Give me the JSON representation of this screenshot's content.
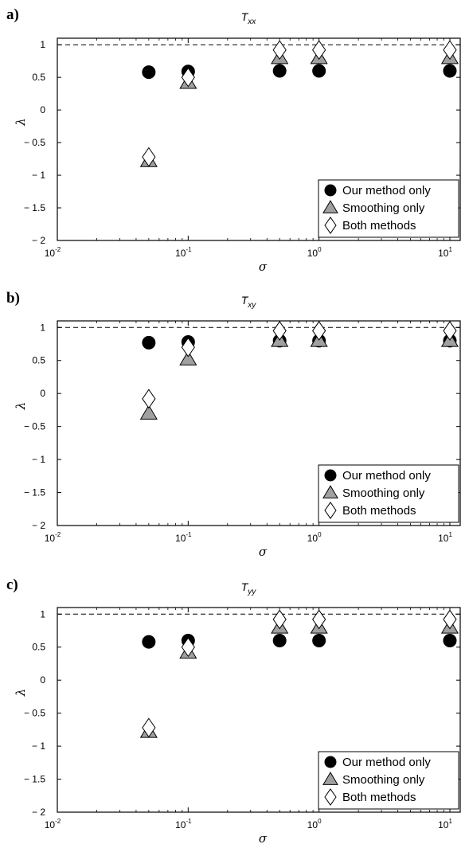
{
  "chart_data": [
    {
      "panel_label": "a)",
      "type": "scatter",
      "title": {
        "main": "T",
        "sub": "xx"
      },
      "xlabel": "σ",
      "ylabel": "λ",
      "xscale": "log",
      "xlim": [
        0.01,
        12
      ],
      "ylim": [
        -2,
        1.1
      ],
      "xticks": [
        {
          "base": "10",
          "exp": "-2",
          "value": 0.01
        },
        {
          "base": "10",
          "exp": "-1",
          "value": 0.1
        },
        {
          "base": "10",
          "exp": "0",
          "value": 1
        },
        {
          "base": "10",
          "exp": "1",
          "value": 10
        }
      ],
      "yticks": [
        {
          "label": "1",
          "value": 1
        },
        {
          "label": "0.5",
          "value": 0.5
        },
        {
          "label": "0",
          "value": 0
        },
        {
          "label": "− 0.5",
          "value": -0.5
        },
        {
          "label": "− 1",
          "value": -1
        },
        {
          "label": "− 1.5",
          "value": -1.5
        },
        {
          "label": "− 2",
          "value": -2
        }
      ],
      "reference_line": {
        "y": 1,
        "style": "dashed"
      },
      "grid": false,
      "legend_position": "bottom-right",
      "series": [
        {
          "name": "Our method only",
          "marker": "circle",
          "color": "#000000",
          "x": [
            0.05,
            0.1,
            0.5,
            1,
            10
          ],
          "y": [
            0.58,
            0.59,
            0.6,
            0.6,
            0.6
          ]
        },
        {
          "name": "Smoothing only",
          "marker": "triangle",
          "color": "#a0a0a0",
          "x": [
            0.05,
            0.1,
            0.5,
            1,
            10
          ],
          "y": [
            -0.78,
            0.42,
            0.8,
            0.8,
            0.8
          ]
        },
        {
          "name": "Both methods",
          "marker": "diamond",
          "color": "#ffffff",
          "x": [
            0.05,
            0.1,
            0.5,
            1,
            10
          ],
          "y": [
            -0.72,
            0.5,
            0.92,
            0.92,
            0.92
          ]
        }
      ]
    },
    {
      "panel_label": "b)",
      "type": "scatter",
      "title": {
        "main": "T",
        "sub": "xy"
      },
      "xlabel": "σ",
      "ylabel": "λ",
      "xscale": "log",
      "xlim": [
        0.01,
        12
      ],
      "ylim": [
        -2,
        1.1
      ],
      "xticks": [
        {
          "base": "10",
          "exp": "-2",
          "value": 0.01
        },
        {
          "base": "10",
          "exp": "-1",
          "value": 0.1
        },
        {
          "base": "10",
          "exp": "0",
          "value": 1
        },
        {
          "base": "10",
          "exp": "1",
          "value": 10
        }
      ],
      "yticks": [
        {
          "label": "1",
          "value": 1
        },
        {
          "label": "0.5",
          "value": 0.5
        },
        {
          "label": "0",
          "value": 0
        },
        {
          "label": "− 0.5",
          "value": -0.5
        },
        {
          "label": "− 1",
          "value": -1
        },
        {
          "label": "− 1.5",
          "value": -1.5
        },
        {
          "label": "− 2",
          "value": -2
        }
      ],
      "reference_line": {
        "y": 1,
        "style": "dashed"
      },
      "grid": false,
      "legend_position": "bottom-right",
      "series": [
        {
          "name": "Our method only",
          "marker": "circle",
          "color": "#000000",
          "x": [
            0.05,
            0.1,
            0.5,
            1,
            10
          ],
          "y": [
            0.77,
            0.78,
            0.8,
            0.8,
            0.8
          ]
        },
        {
          "name": "Smoothing only",
          "marker": "triangle",
          "color": "#a0a0a0",
          "x": [
            0.05,
            0.1,
            0.5,
            1,
            10
          ],
          "y": [
            -0.3,
            0.52,
            0.8,
            0.8,
            0.8
          ]
        },
        {
          "name": "Both methods",
          "marker": "diamond",
          "color": "#ffffff",
          "x": [
            0.05,
            0.1,
            0.5,
            1,
            10
          ],
          "y": [
            -0.08,
            0.7,
            0.95,
            0.95,
            0.95
          ]
        }
      ]
    },
    {
      "panel_label": "c)",
      "type": "scatter",
      "title": {
        "main": "T",
        "sub": "yy"
      },
      "xlabel": "σ",
      "ylabel": "λ",
      "xscale": "log",
      "xlim": [
        0.01,
        12
      ],
      "ylim": [
        -2,
        1.1
      ],
      "xticks": [
        {
          "base": "10",
          "exp": "-2",
          "value": 0.01
        },
        {
          "base": "10",
          "exp": "-1",
          "value": 0.1
        },
        {
          "base": "10",
          "exp": "0",
          "value": 1
        },
        {
          "base": "10",
          "exp": "1",
          "value": 10
        }
      ],
      "yticks": [
        {
          "label": "1",
          "value": 1
        },
        {
          "label": "0.5",
          "value": 0.5
        },
        {
          "label": "0",
          "value": 0
        },
        {
          "label": "− 0.5",
          "value": -0.5
        },
        {
          "label": "− 1",
          "value": -1
        },
        {
          "label": "− 1.5",
          "value": -1.5
        },
        {
          "label": "− 2",
          "value": -2
        }
      ],
      "reference_line": {
        "y": 1,
        "style": "dashed"
      },
      "grid": false,
      "legend_position": "bottom-right",
      "series": [
        {
          "name": "Our method only",
          "marker": "circle",
          "color": "#000000",
          "x": [
            0.05,
            0.1,
            0.5,
            1,
            10
          ],
          "y": [
            0.58,
            0.6,
            0.6,
            0.6,
            0.6
          ]
        },
        {
          "name": "Smoothing only",
          "marker": "triangle",
          "color": "#a0a0a0",
          "x": [
            0.05,
            0.1,
            0.5,
            1,
            10
          ],
          "y": [
            -0.78,
            0.42,
            0.8,
            0.8,
            0.8
          ]
        },
        {
          "name": "Both methods",
          "marker": "diamond",
          "color": "#ffffff",
          "x": [
            0.05,
            0.1,
            0.5,
            1,
            10
          ],
          "y": [
            -0.72,
            0.5,
            0.92,
            0.92,
            0.92
          ]
        }
      ]
    }
  ]
}
